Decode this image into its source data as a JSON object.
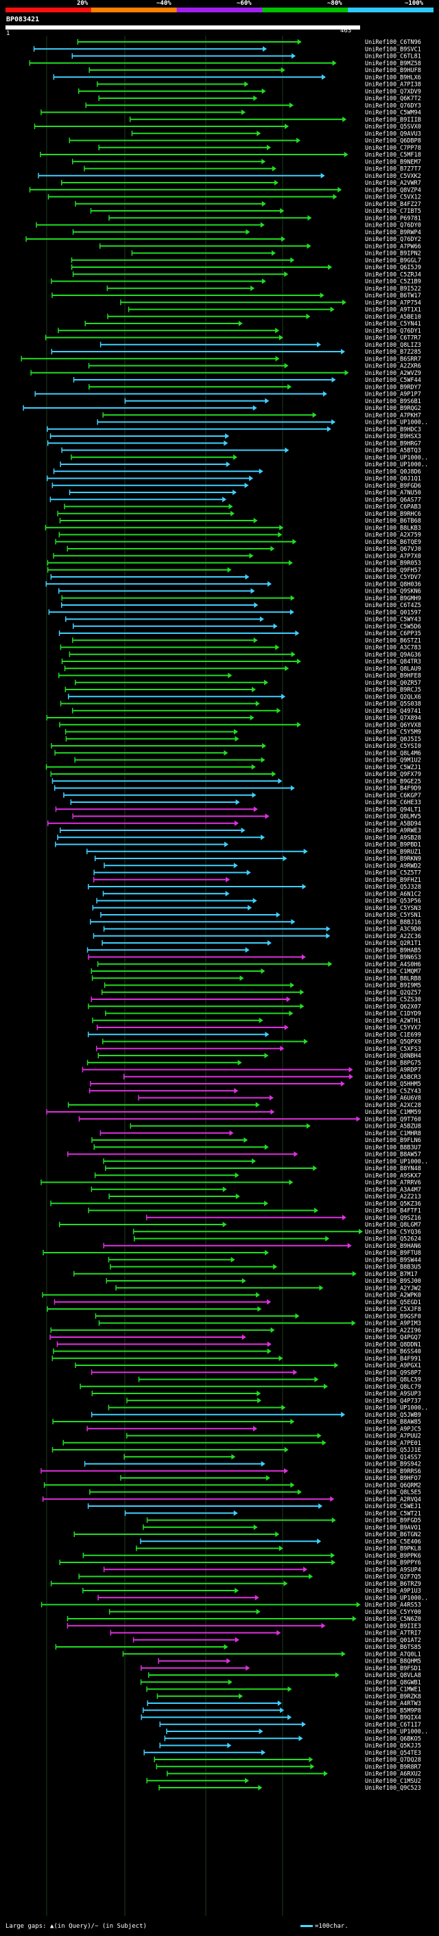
{
  "legend": {
    "labels": [
      "20%",
      "~40%",
      "~60%",
      "~80%",
      "~100%"
    ],
    "colors": [
      "#ff1010",
      "#ff7f00",
      "#a020f0",
      "#00c000",
      "#30c8ff"
    ]
  },
  "query": {
    "id": "BP083421",
    "start": "1",
    "end": "463"
  },
  "hit_colors": {
    "green": "#22dd22",
    "cyan": "#40d0ff",
    "magenta": "#e030e0"
  },
  "hits": [
    {
      "label": "UniRef100_C6TN96",
      "c": "g"
    },
    {
      "label": "UniRef100_B9SVC1",
      "c": "c"
    },
    {
      "label": "UniRef100_C6TL81",
      "c": "c"
    },
    {
      "label": "UniRef100_B9MZ58",
      "c": "g"
    },
    {
      "label": "UniRef100_B9HUF8",
      "c": "g"
    },
    {
      "label": "UniRef100_B9HLX6",
      "c": "c"
    },
    {
      "label": "UniRef100_A7PI38",
      "c": "g"
    },
    {
      "label": "UniRef100_Q7XDV9",
      "c": "g"
    },
    {
      "label": "UniRef100_Q6K7T2",
      "c": "g"
    },
    {
      "label": "UniRef100_Q76DY3",
      "c": "g"
    },
    {
      "label": "UniRef100_C5WM94",
      "c": "g"
    },
    {
      "label": "UniRef100_B9IIIB",
      "c": "g"
    },
    {
      "label": "UniRef100_Q5SVX0",
      "c": "g"
    },
    {
      "label": "UniRef100_Q9AVU3",
      "c": "g"
    },
    {
      "label": "UniRef100_Q6DBP8",
      "c": "g"
    },
    {
      "label": "UniRef100_C7PP78",
      "c": "g"
    },
    {
      "label": "UniRef100_C5MF18",
      "c": "g"
    },
    {
      "label": "UniRef100_B9NEM7",
      "c": "g"
    },
    {
      "label": "UniRef100_B7Z7T7",
      "c": "g"
    },
    {
      "label": "UniRef100_C5VXK2",
      "c": "c"
    },
    {
      "label": "UniRef100_A2VWR7",
      "c": "g"
    },
    {
      "label": "UniRef100_Q8VZP4",
      "c": "g"
    },
    {
      "label": "UniRef100_C5VX12",
      "c": "g"
    },
    {
      "label": "UniRef100_B4FZ27",
      "c": "g"
    },
    {
      "label": "UniRef100_C7IBT5",
      "c": "g"
    },
    {
      "label": "UniRef100_P69781",
      "c": "g"
    },
    {
      "label": "UniRef100_Q76DY0",
      "c": "g"
    },
    {
      "label": "UniRef100_B9RWP4",
      "c": "g"
    },
    {
      "label": "UniRef100_Q76DY2",
      "c": "g"
    },
    {
      "label": "UniRef100_A7PW66",
      "c": "g"
    },
    {
      "label": "UniRef100_B9IPN2",
      "c": "g"
    },
    {
      "label": "UniRef100_B9GGL7",
      "c": "g"
    },
    {
      "label": "UniRef100_Q6I5J9",
      "c": "g"
    },
    {
      "label": "UniRef100_C5ZRJ4",
      "c": "g"
    },
    {
      "label": "UniRef100_C5Z1B9",
      "c": "g"
    },
    {
      "label": "UniRef100_B9I522",
      "c": "g"
    },
    {
      "label": "UniRef100_B6TW17",
      "c": "g"
    },
    {
      "label": "UniRef100_A7P754",
      "c": "g"
    },
    {
      "label": "UniRef100_A9T1X1",
      "c": "g"
    },
    {
      "label": "UniRef100_A5BE10",
      "c": "g"
    },
    {
      "label": "UniRef100_C5YN41",
      "c": "g"
    },
    {
      "label": "UniRef100_Q76DY1",
      "c": "g"
    },
    {
      "label": "UniRef100_C6T7R7",
      "c": "g"
    },
    {
      "label": "UniRef100_Q8LIZ3",
      "c": "c"
    },
    {
      "label": "UniRef100_B7Z285",
      "c": "c"
    },
    {
      "label": "UniRef100_B6SRR7",
      "c": "g"
    },
    {
      "label": "UniRef100_A2ZXR6",
      "c": "g"
    },
    {
      "label": "UniRef100_A2WVZ9",
      "c": "g"
    },
    {
      "label": "UniRef100_C5WF44",
      "c": "c"
    },
    {
      "label": "UniRef100_B9RDY7",
      "c": "g"
    },
    {
      "label": "UniRef100_A9P1P7",
      "c": "c"
    },
    {
      "label": "UniRef100_B9S6B1",
      "c": "c"
    },
    {
      "label": "UniRef100_B9RQG2",
      "c": "c"
    },
    {
      "label": "UniRef100_A7PKH7",
      "c": "g"
    },
    {
      "label": "UniRef100_UP1000..",
      "c": "c"
    },
    {
      "label": "UniRef100_B9HDC3",
      "c": "c"
    },
    {
      "label": "UniRef100_B9HSX3",
      "c": "c"
    },
    {
      "label": "UniRef100_B9HRG7",
      "c": "c"
    },
    {
      "label": "UniRef100_A5BTQ3",
      "c": "c"
    },
    {
      "label": "UniRef100_UP1000..",
      "c": "g"
    },
    {
      "label": "UniRef100_UP1000..",
      "c": "c"
    },
    {
      "label": "UniRef100_Q0J8D6",
      "c": "c"
    },
    {
      "label": "UniRef100_Q0J1Q1",
      "c": "c"
    },
    {
      "label": "UniRef100_B9FGD6",
      "c": "c"
    },
    {
      "label": "UniRef100_A7NU50",
      "c": "c"
    },
    {
      "label": "UniRef100_Q6AS77",
      "c": "c"
    },
    {
      "label": "UniRef100_C6PAB3",
      "c": "g"
    },
    {
      "label": "UniRef100_B9RHC6",
      "c": "g"
    },
    {
      "label": "UniRef100_B6TB68",
      "c": "g"
    },
    {
      "label": "UniRef100_B8LKB3",
      "c": "g"
    },
    {
      "label": "UniRef100_A2X759",
      "c": "g"
    },
    {
      "label": "UniRef100_B6TQE9",
      "c": "g"
    },
    {
      "label": "UniRef100_Q67VJ0",
      "c": "g"
    },
    {
      "label": "UniRef100_A7P7X0",
      "c": "g"
    },
    {
      "label": "UniRef100_B9R053",
      "c": "g"
    },
    {
      "label": "UniRef100_Q9FH57",
      "c": "g"
    },
    {
      "label": "UniRef100_C5YDV7",
      "c": "c"
    },
    {
      "label": "UniRef100_Q8H036",
      "c": "c"
    },
    {
      "label": "UniRef100_Q9SKN6",
      "c": "c"
    },
    {
      "label": "UniRef100_B9GMH9",
      "c": "g"
    },
    {
      "label": "UniRef100_C6T4Z5",
      "c": "c"
    },
    {
      "label": "UniRef100_Q01597",
      "c": "c"
    },
    {
      "label": "UniRef100_C5WY43",
      "c": "c"
    },
    {
      "label": "UniRef100_C5W5D6",
      "c": "c"
    },
    {
      "label": "UniRef100_C6PP35",
      "c": "c"
    },
    {
      "label": "UniRef100_B6STZ1",
      "c": "g"
    },
    {
      "label": "UniRef100_A3C783",
      "c": "g"
    },
    {
      "label": "UniRef100_Q9AG36",
      "c": "g"
    },
    {
      "label": "UniRef100_Q84TR3",
      "c": "g"
    },
    {
      "label": "UniRef100_Q8LAU9",
      "c": "g"
    },
    {
      "label": "UniRef100_B9HFE8",
      "c": "g"
    },
    {
      "label": "UniRef100_Q0ZR57",
      "c": "g"
    },
    {
      "label": "UniRef100_B9RCJ5",
      "c": "g"
    },
    {
      "label": "UniRef100_Q2QLX6",
      "c": "c"
    },
    {
      "label": "UniRef100_Q5S038",
      "c": "g"
    },
    {
      "label": "UniRef100_Q49741",
      "c": "g"
    },
    {
      "label": "UniRef100_Q7X894",
      "c": "g"
    },
    {
      "label": "UniRef100_Q6YVX8",
      "c": "g"
    },
    {
      "label": "UniRef100_C5Y5M9",
      "c": "g"
    },
    {
      "label": "UniRef100_Q0J5I5",
      "c": "g"
    },
    {
      "label": "UniRef100_C5YSI0",
      "c": "g"
    },
    {
      "label": "UniRef100_Q8L4M6",
      "c": "g"
    },
    {
      "label": "UniRef100_Q9M1U2",
      "c": "g"
    },
    {
      "label": "UniRef100_C5WZJ1",
      "c": "g"
    },
    {
      "label": "UniRef100_Q9FX79",
      "c": "g"
    },
    {
      "label": "UniRef100_B9GE25",
      "c": "c"
    },
    {
      "label": "UniRef100_B4F9D9",
      "c": "c"
    },
    {
      "label": "UniRef100_C6KGP7",
      "c": "c"
    },
    {
      "label": "UniRef100_C6HE33",
      "c": "c"
    },
    {
      "label": "UniRef100_Q94LT1",
      "c": "m"
    },
    {
      "label": "UniRef100_Q8LMV5",
      "c": "m"
    },
    {
      "label": "UniRef100_A5BD94",
      "c": "m"
    },
    {
      "label": "UniRef100_A9RWE3",
      "c": "c"
    },
    {
      "label": "UniRef100_A9SB28",
      "c": "c"
    },
    {
      "label": "UniRef100_B9PBD1",
      "c": "c"
    },
    {
      "label": "UniRef100_B9RUZ1",
      "c": "c"
    },
    {
      "label": "UniRef100_B9RKN9",
      "c": "c"
    },
    {
      "label": "UniRef100_A9RWD2",
      "c": "c"
    },
    {
      "label": "UniRef100_C5Z5T7",
      "c": "c"
    },
    {
      "label": "UniRef100_B9FHZ1",
      "c": "m"
    },
    {
      "label": "UniRef100_Q5J328",
      "c": "c"
    },
    {
      "label": "UniRef100_A6N1C2",
      "c": "c"
    },
    {
      "label": "UniRef100_Q53P56",
      "c": "c"
    },
    {
      "label": "UniRef100_C5YSN3",
      "c": "c"
    },
    {
      "label": "UniRef100_C5YSN1",
      "c": "c"
    },
    {
      "label": "UniRef100_B8BJ16",
      "c": "c"
    },
    {
      "label": "UniRef100_A3C9D0",
      "c": "c"
    },
    {
      "label": "UniRef100_A2ZC36",
      "c": "c"
    },
    {
      "label": "UniRef100_Q2R1T1",
      "c": "c"
    },
    {
      "label": "UniRef100_B9HAB5",
      "c": "c"
    },
    {
      "label": "UniRef100_B9N6S3",
      "c": "m"
    },
    {
      "label": "UniRef100_A4S0H6",
      "c": "g"
    },
    {
      "label": "UniRef100_C1MQM7",
      "c": "g"
    },
    {
      "label": "UniRef100_B8LRB8",
      "c": "g"
    },
    {
      "label": "UniRef100_B9I9M5",
      "c": "g"
    },
    {
      "label": "UniRef100_Q2QZ57",
      "c": "g"
    },
    {
      "label": "UniRef100_C5ZS30",
      "c": "m"
    },
    {
      "label": "UniRef100_Q62X07",
      "c": "g"
    },
    {
      "label": "UniRef100_C1DYD9",
      "c": "g"
    },
    {
      "label": "UniRef100_A2WTH1",
      "c": "g"
    },
    {
      "label": "UniRef100_C5YVX7",
      "c": "m"
    },
    {
      "label": "UniRef100_C1E699",
      "c": "c"
    },
    {
      "label": "UniRef100_Q5QPX9",
      "c": "g"
    },
    {
      "label": "UniRef100_C5XFS3",
      "c": "m"
    },
    {
      "label": "UniRef100_Q8NBH4",
      "c": "g"
    },
    {
      "label": "UniRef100_B8PG75",
      "c": "g"
    },
    {
      "label": "UniRef100_A9RDP7",
      "c": "m"
    },
    {
      "label": "UniRef100_A5BCR3",
      "c": "m"
    },
    {
      "label": "UniRef100_Q5HHM5",
      "c": "m"
    },
    {
      "label": "UniRef100_C5ZY43",
      "c": "m"
    },
    {
      "label": "UniRef100_A6U6V8",
      "c": "m"
    },
    {
      "label": "UniRef100_A2XC28",
      "c": "g"
    },
    {
      "label": "UniRef100_C1MM59",
      "c": "m"
    },
    {
      "label": "UniRef100_Q9T760",
      "c": "m"
    },
    {
      "label": "UniRef100_A5BZU8",
      "c": "g"
    },
    {
      "label": "UniRef100_C1MHR8",
      "c": "m"
    },
    {
      "label": "UniRef100_B9FLN6",
      "c": "g"
    },
    {
      "label": "UniRef100_B8B3U7",
      "c": "g"
    },
    {
      "label": "UniRef100_B8AW57",
      "c": "m"
    },
    {
      "label": "UniRef100_UP1000..",
      "c": "g"
    },
    {
      "label": "UniRef100_B8YN48",
      "c": "g"
    },
    {
      "label": "UniRef100_A9SKX7",
      "c": "g"
    },
    {
      "label": "UniRef100_A7RRV6",
      "c": "g"
    },
    {
      "label": "UniRef100_A3A4M7",
      "c": "g"
    },
    {
      "label": "UniRef100_A2Z213",
      "c": "g"
    },
    {
      "label": "UniRef100_Q5KZ36",
      "c": "g"
    },
    {
      "label": "UniRef100_B4FTF1",
      "c": "g"
    },
    {
      "label": "UniRef100_Q9SZ16",
      "c": "m"
    },
    {
      "label": "UniRef100_Q8LGM7",
      "c": "g"
    },
    {
      "label": "UniRef100_C5YQ36",
      "c": "g"
    },
    {
      "label": "UniRef100_Q52624",
      "c": "g"
    },
    {
      "label": "UniRef100_B9HAN6",
      "c": "m"
    },
    {
      "label": "UniRef100_B9FTU8",
      "c": "g"
    },
    {
      "label": "UniRef100_B9SW44",
      "c": "g"
    },
    {
      "label": "UniRef100_B8B3U5",
      "c": "g"
    },
    {
      "label": "UniRef100_B7M17",
      "c": "g"
    },
    {
      "label": "UniRef100_B9SJ00",
      "c": "g"
    },
    {
      "label": "UniRef100_A2YJW2",
      "c": "g"
    },
    {
      "label": "UniRef100_A2WPK0",
      "c": "g"
    },
    {
      "label": "UniRef100_Q5EGD1",
      "c": "m"
    },
    {
      "label": "UniRef100_C5XJF8",
      "c": "g"
    },
    {
      "label": "UniRef100_B9GSF0",
      "c": "g"
    },
    {
      "label": "UniRef100_A9PIM3",
      "c": "g"
    },
    {
      "label": "UniRef100_A2ZI96",
      "c": "g"
    },
    {
      "label": "UniRef100_Q4PGQ7",
      "c": "m"
    },
    {
      "label": "UniRef100_Q8DDN1",
      "c": "m"
    },
    {
      "label": "UniRef100_B6SS40",
      "c": "g"
    },
    {
      "label": "UniRef100_B4F991",
      "c": "g"
    },
    {
      "label": "UniRef100_A9PGX1",
      "c": "g"
    },
    {
      "label": "UniRef100_Q9S8P7",
      "c": "m"
    },
    {
      "label": "UniRef100_Q8LC59",
      "c": "g"
    },
    {
      "label": "UniRef100_Q8LC79",
      "c": "g"
    },
    {
      "label": "UniRef100_A9SUP3",
      "c": "g"
    },
    {
      "label": "UniRef100_Q4P737",
      "c": "g"
    },
    {
      "label": "UniRef100_UP1000..",
      "c": "g"
    },
    {
      "label": "UniRef100_Q5JWB9",
      "c": "c"
    },
    {
      "label": "UniRef100_B8AW85",
      "c": "g"
    },
    {
      "label": "UniRef100_A9PJC5",
      "c": "m"
    },
    {
      "label": "UniRef100_A7PUU2",
      "c": "g"
    },
    {
      "label": "UniRef100_A7PE01",
      "c": "g"
    },
    {
      "label": "UniRef100_Q5JJ1E",
      "c": "g"
    },
    {
      "label": "UniRef100_Q14SS7",
      "c": "g"
    },
    {
      "label": "UniRef100_B9S942",
      "c": "c"
    },
    {
      "label": "UniRef100_B9RRS6",
      "c": "m"
    },
    {
      "label": "UniRef100_B9HFO7",
      "c": "g"
    },
    {
      "label": "UniRef100_Q6QRM2",
      "c": "g"
    },
    {
      "label": "UniRef100_Q8L5E5",
      "c": "g"
    },
    {
      "label": "UniRef100_A2RVQ4",
      "c": "m"
    },
    {
      "label": "UniRef100_C5WEJ1",
      "c": "c"
    },
    {
      "label": "UniRef100_C5WT21",
      "c": "c"
    },
    {
      "label": "UniRef100_B9FGD5",
      "c": "g"
    },
    {
      "label": "UniRef100_B9AVO1",
      "c": "g"
    },
    {
      "label": "UniRef100_B6TGN2",
      "c": "g"
    },
    {
      "label": "UniRef100_C5E406",
      "c": "c"
    },
    {
      "label": "UniRef100_B9PKL8",
      "c": "g"
    },
    {
      "label": "UniRef100_B9PPK6",
      "c": "g"
    },
    {
      "label": "UniRef100_B9PPY6",
      "c": "g"
    },
    {
      "label": "UniRef100_A9SUP4",
      "c": "m"
    },
    {
      "label": "UniRef100_Q2F7Q5",
      "c": "g"
    },
    {
      "label": "UniRef100_B6TRZ9",
      "c": "g"
    },
    {
      "label": "UniRef100_A9P1U3",
      "c": "g"
    },
    {
      "label": "UniRef100_UP1000..",
      "c": "m"
    },
    {
      "label": "UniRef100_A4RS53",
      "c": "g"
    },
    {
      "label": "UniRef100_C5YY00",
      "c": "g"
    },
    {
      "label": "UniRef100_C5N6Z0",
      "c": "g"
    },
    {
      "label": "UniRef100_B9IIE3",
      "c": "m"
    },
    {
      "label": "UniRef100_A7TRI7",
      "c": "m"
    },
    {
      "label": "UniRef100_Q01AT2",
      "c": "m"
    },
    {
      "label": "UniRef100_B6TS85",
      "c": "g"
    },
    {
      "label": "UniRef100_A7Q0L1",
      "c": "g"
    },
    {
      "label": "UniRef100_B8QHM5",
      "c": "m"
    },
    {
      "label": "UniRef100_B9FSD1",
      "c": "m"
    },
    {
      "label": "UniRef100_Q8VLA8",
      "c": "g"
    },
    {
      "label": "UniRef100_Q8GWB1",
      "c": "g"
    },
    {
      "label": "UniRef100_C1MWE1",
      "c": "g"
    },
    {
      "label": "UniRef100_B9RZK8",
      "c": "g"
    },
    {
      "label": "UniRef100_A4RTW3",
      "c": "c"
    },
    {
      "label": "UniRef100_B5M9P8",
      "c": "c"
    },
    {
      "label": "UniRef100_B9QIX4",
      "c": "c"
    },
    {
      "label": "UniRef100_C6T1I7",
      "c": "c"
    },
    {
      "label": "UniRef100_UP1000..",
      "c": "c"
    },
    {
      "label": "UniRef100_Q6BKO5",
      "c": "c"
    },
    {
      "label": "UniRef100_Q5KJJ5",
      "c": "c"
    },
    {
      "label": "UniRef100_Q54TE3",
      "c": "c"
    },
    {
      "label": "UniRef100_Q7DQ28",
      "c": "g"
    },
    {
      "label": "UniRef100_B9R8R7",
      "c": "g"
    },
    {
      "label": "UniRef100_A6RXU2",
      "c": "g"
    },
    {
      "label": "UniRef100_C1MSU2",
      "c": "g"
    },
    {
      "label": "UniRef100_Q9C523",
      "c": "g"
    }
  ],
  "footer": {
    "text": "Large gaps: ▲(in Query)/~ (in Subject)",
    "key": "=100char."
  }
}
